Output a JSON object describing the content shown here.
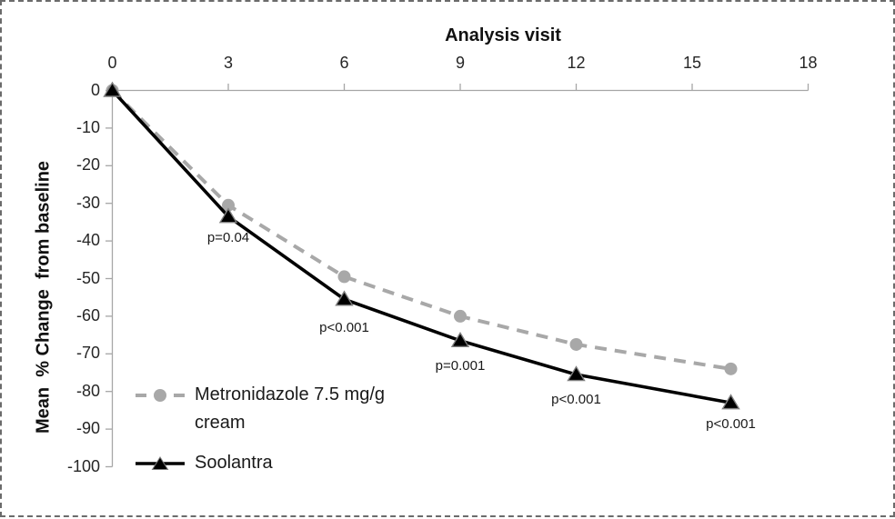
{
  "frame": {
    "border_color": "#6b6b6b",
    "background": "#ffffff"
  },
  "chart_data": {
    "type": "line",
    "title": "Analysis visit",
    "xlabel": "Analysis visit",
    "ylabel": "Mean  % Change  from baseline",
    "x": [
      0,
      3,
      6,
      9,
      12,
      16
    ],
    "x_axis": {
      "position": "top",
      "min": 0,
      "max": 18,
      "ticks": [
        0,
        3,
        6,
        9,
        12,
        15,
        18
      ]
    },
    "y_axis": {
      "min": -100,
      "max": 0,
      "ticks": [
        0,
        -10,
        -20,
        -30,
        -40,
        -50,
        -60,
        -70,
        -80,
        -90,
        -100
      ]
    },
    "axis_color": "#a6a6a6",
    "grid": false,
    "series": [
      {
        "name": "Metronidazole 7.5 mg/g cream",
        "color": "#a8a8a8",
        "line_style": "dashed",
        "marker": "circle",
        "values": [
          0,
          -30.5,
          -49.5,
          -60,
          -67.5,
          -74
        ]
      },
      {
        "name": "Soolantra",
        "color": "#000000",
        "line_style": "solid",
        "marker": "triangle",
        "values": [
          0,
          -33.5,
          -55.5,
          -66.5,
          -75.5,
          -83
        ]
      }
    ],
    "annotations": [
      {
        "text": "p=0.04",
        "x": 3,
        "y": -39.5
      },
      {
        "text": "p<0.001",
        "x": 6,
        "y": -63.5
      },
      {
        "text": "p=0.001",
        "x": 9,
        "y": -73.5
      },
      {
        "text": "p<0.001",
        "x": 12,
        "y": -82.5
      },
      {
        "text": "p<0.001",
        "x": 16,
        "y": -89
      }
    ],
    "legend": {
      "position": "bottom-left"
    }
  }
}
